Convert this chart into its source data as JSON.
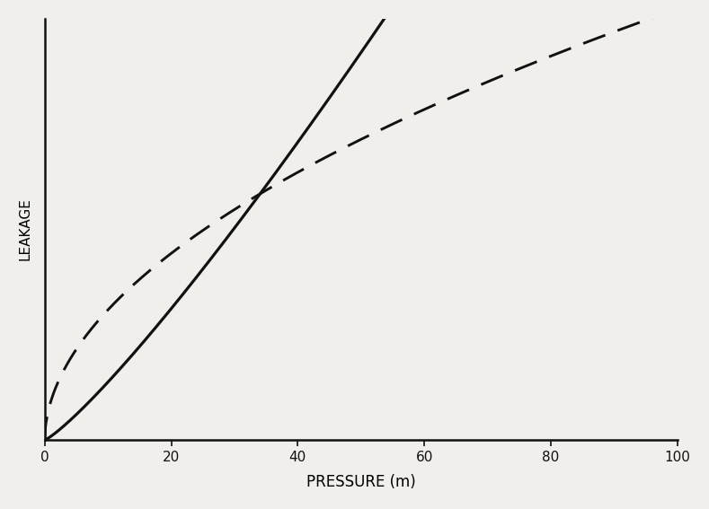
{
  "xlabel": "PRESSURE (m)",
  "ylabel": "LEAKAGE",
  "xlim": [
    0,
    100
  ],
  "ylim": [
    0,
    1.05
  ],
  "xticks": [
    0,
    20,
    40,
    60,
    80,
    100
  ],
  "background_color": "#f0efeb",
  "solid_line_color": "#111111",
  "dashed_line_color": "#111111",
  "solid_exponent": 1.18,
  "dashed_exponent": 0.52,
  "solid_scale": 0.00955,
  "dashed_scale": 0.098,
  "xlabel_fontsize": 12,
  "ylabel_fontsize": 11,
  "tick_fontsize": 11,
  "linewidth_solid": 2.3,
  "linewidth_dashed": 2.1,
  "dash_pattern": [
    9,
    5
  ]
}
